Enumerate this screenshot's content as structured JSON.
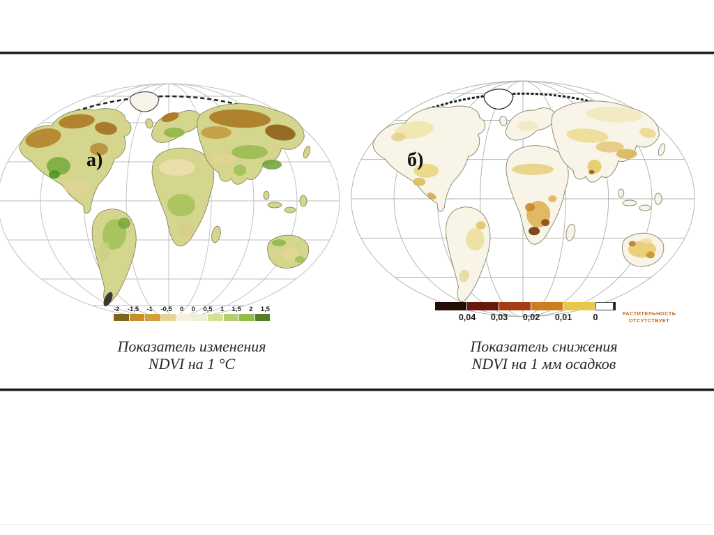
{
  "slide": {
    "background": "#ffffff",
    "divider_color": "#1c1c1c"
  },
  "panel_a": {
    "label": "а)",
    "caption": {
      "line1": "Показатель изменения",
      "line2": "NDVI на 1 °С"
    },
    "legend": {
      "tick_labels": [
        "-2",
        "-1,5",
        "-1",
        "-0,5",
        "0",
        "0",
        "0,5",
        "1",
        "1,5",
        "2",
        "1,5"
      ],
      "box_colors": [
        "#7c661c",
        "#c88f26",
        "#d2a238",
        "#e5d494",
        "#f4f1e0",
        "#eef0d4",
        "#d3e096",
        "#b4d06e",
        "#92bb4a",
        "#527e27"
      ]
    }
  },
  "panel_b": {
    "label": "б)",
    "caption": {
      "line1": "Показатель снижения",
      "line2": "NDVI на 1 мм осадков"
    },
    "legend": {
      "tick_labels": [
        "0,04",
        "0,03",
        "0,02",
        "0,01",
        "0"
      ],
      "segment_colors": [
        "#230d05",
        "#6b180c",
        "#a63c12",
        "#cd7d20",
        "#e9c74a"
      ],
      "no_data_fill": "#ffffff",
      "note": {
        "line1": "РАСТИТЕЛЬНОСТЬ",
        "line2": "ОТСУТСТВУЕТ",
        "color": "#c06c22"
      }
    }
  }
}
